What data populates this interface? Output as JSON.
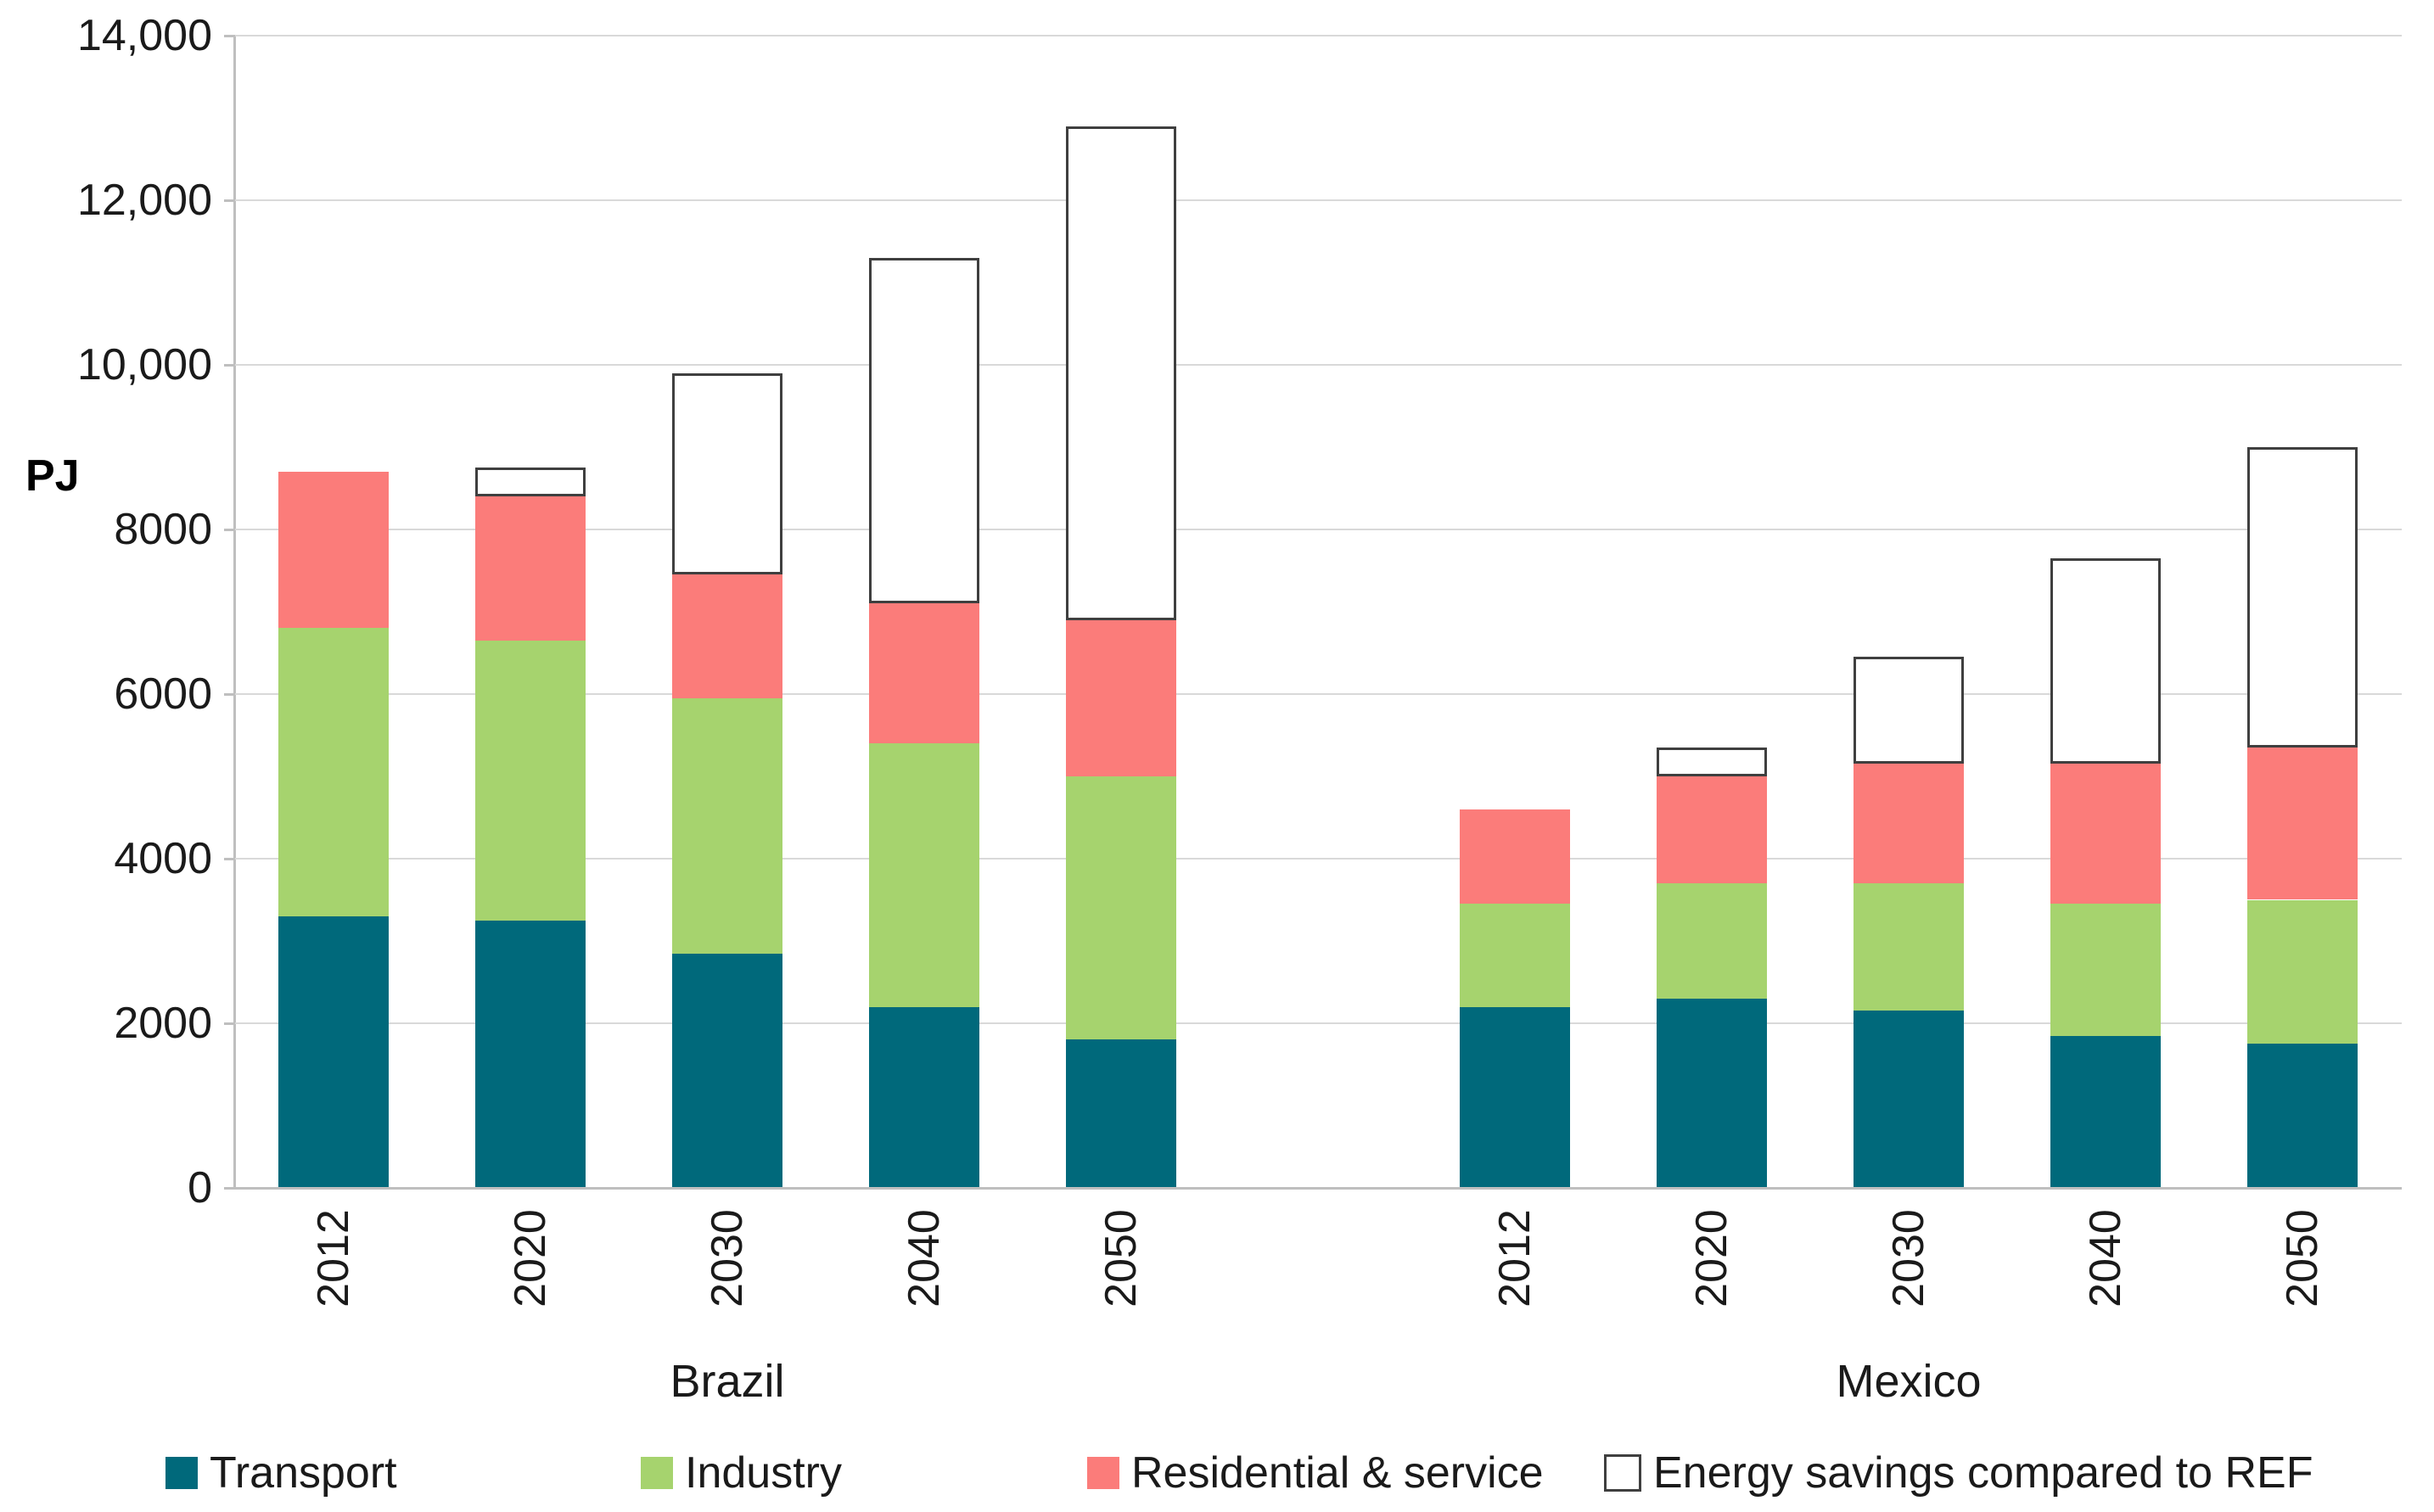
{
  "chart_data": {
    "type": "bar",
    "stacked": true,
    "title": "",
    "ylabel": "PJ",
    "xlabel": "",
    "ylim": [
      0,
      14000
    ],
    "y_major_unit": 2000,
    "y_tick_labels": [
      "0",
      "2000",
      "4000",
      "6000",
      "8000",
      "10,000",
      "12,000",
      "14,000"
    ],
    "grid": true,
    "legend_position": "bottom",
    "groups": [
      {
        "name": "Brazil",
        "categories": [
          "2012",
          "2020",
          "2030",
          "2040",
          "2050"
        ],
        "series": [
          {
            "name": "Transport",
            "values": [
              3300,
              3250,
              2850,
              2200,
              1800
            ]
          },
          {
            "name": "Industry",
            "values": [
              3500,
              3400,
              3100,
              3200,
              3200
            ]
          },
          {
            "name": "Residential & service",
            "values": [
              1900,
              1750,
              1500,
              1700,
              1900
            ]
          },
          {
            "name": "Energy savings compared to REF",
            "values": [
              0,
              350,
              2450,
              4200,
              6000
            ]
          }
        ],
        "stack_tops": {
          "transport": [
            3300,
            3250,
            2850,
            2200,
            1800
          ],
          "industry": [
            6800,
            6650,
            5950,
            5400,
            5000
          ],
          "residential": [
            8700,
            8400,
            7450,
            7100,
            6900
          ],
          "savings": [
            8700,
            8750,
            9900,
            11300,
            12900
          ]
        }
      },
      {
        "name": "Mexico",
        "categories": [
          "2012",
          "2020",
          "2030",
          "2040",
          "2050"
        ],
        "series": [
          {
            "name": "Transport",
            "values": [
              2200,
              2300,
              2150,
              1850,
              1750
            ]
          },
          {
            "name": "Industry",
            "values": [
              1250,
              1400,
              1550,
              1600,
              1750
            ]
          },
          {
            "name": "Residential & service",
            "values": [
              1150,
              1300,
              1450,
              1700,
              1850
            ]
          },
          {
            "name": "Energy savings compared to REF",
            "values": [
              0,
              350,
              1300,
              2500,
              3650
            ]
          }
        ],
        "stack_tops": {
          "transport": [
            2200,
            2300,
            2150,
            1850,
            1750
          ],
          "industry": [
            3450,
            3700,
            3700,
            3450,
            3500
          ],
          "residential": [
            4600,
            5000,
            5150,
            5150,
            5350
          ],
          "savings": [
            4600,
            5350,
            6450,
            7650,
            9000
          ]
        }
      }
    ],
    "legend": [
      {
        "label": "Transport",
        "color": "#00697b",
        "border": ""
      },
      {
        "label": "Industry",
        "color": "#a6d36e",
        "border": ""
      },
      {
        "label": "Residential & service",
        "color": "#fb7c7a",
        "border": ""
      },
      {
        "label": "Energy savings compared to REF",
        "color": "#ffffff",
        "border": "#3f3f3f"
      }
    ],
    "colors": {
      "transport": "#00697b",
      "industry": "#a6d36e",
      "residential": "#fb7c7a",
      "savings_fill": "#ffffff",
      "savings_border": "#3f3f3f",
      "gridline": "#d9d9d9",
      "axis": "#bfbfbf"
    }
  }
}
